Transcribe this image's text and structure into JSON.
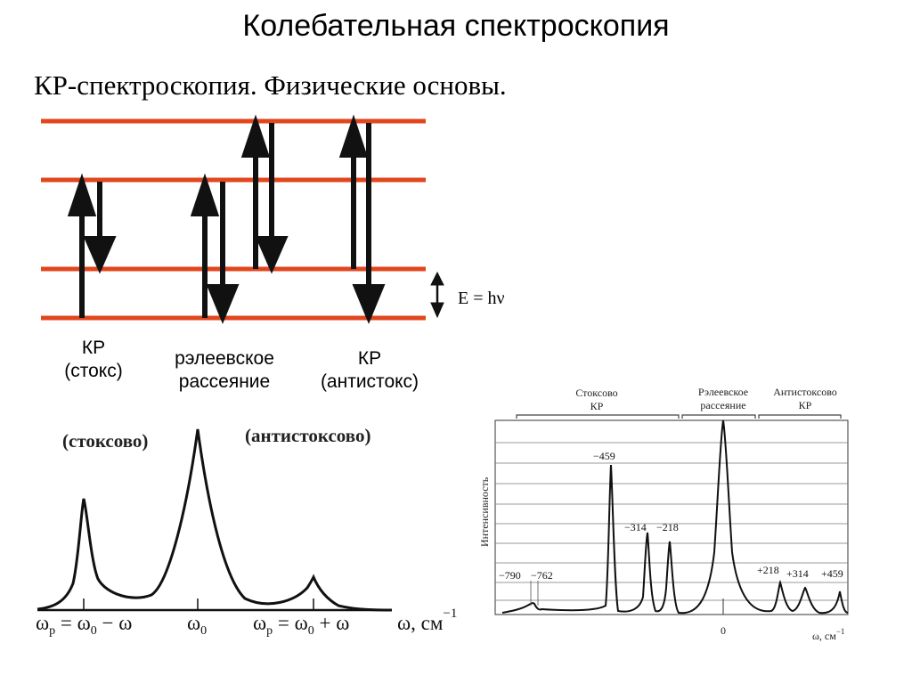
{
  "page": {
    "title": "Колебательная спектроскопия",
    "subtitle": "КР-спектроскопия. Физические основы."
  },
  "energy_diagram": {
    "equation": "E = hν",
    "labels": {
      "stokes": [
        "КР",
        "(стокс)"
      ],
      "rayleigh": [
        "рэлеевское",
        "рассеяние"
      ],
      "antistokes": [
        "КР",
        "(антистокс)"
      ]
    },
    "colors": {
      "level_line": "#e2461c",
      "arrow": "#111111"
    }
  },
  "left_spectrum": {
    "label_stokes": "(стоксово)",
    "label_antistokes": "(антистоксово)",
    "axis_label": "ω, см",
    "axis_exponent": "−1",
    "ticks": [
      "ω",
      "ω",
      "ω"
    ],
    "tick_formulas": {
      "left": "ωp = ω0 − ω",
      "center": "ω0",
      "right": "ωp = ω0 + ω"
    },
    "tick_parts": {
      "left": [
        "ω",
        "p",
        " = ω",
        "0",
        " − ω"
      ],
      "center": [
        "ω",
        "0"
      ],
      "right": [
        "ω",
        "p",
        " = ω",
        "0",
        " + ω"
      ]
    }
  },
  "right_spectrum": {
    "header_stokes": [
      "Стоксово",
      "КР"
    ],
    "header_rayleigh": [
      "Рэлеевское",
      "рассеяние"
    ],
    "header_antistokes": [
      "Антистоксово",
      "КР"
    ],
    "ylabel": "Интенсивность",
    "xlabel": "ω, см",
    "xlabel_exp": "−1",
    "zero_label": "0"
  },
  "chart_data": {
    "type": "line",
    "title": "",
    "xlabel": "ω, см−1",
    "ylabel": "Интенсивность",
    "peaks": [
      {
        "label": "−790",
        "x": -790
      },
      {
        "label": "−762",
        "x": -762
      },
      {
        "label": "−459",
        "x": -459
      },
      {
        "label": "−314",
        "x": -314
      },
      {
        "label": "−218",
        "x": -218
      },
      {
        "label": "0",
        "x": 0
      },
      {
        "label": "+218",
        "x": 218
      },
      {
        "label": "+314",
        "x": 314
      },
      {
        "label": "+459",
        "x": 459
      }
    ]
  }
}
